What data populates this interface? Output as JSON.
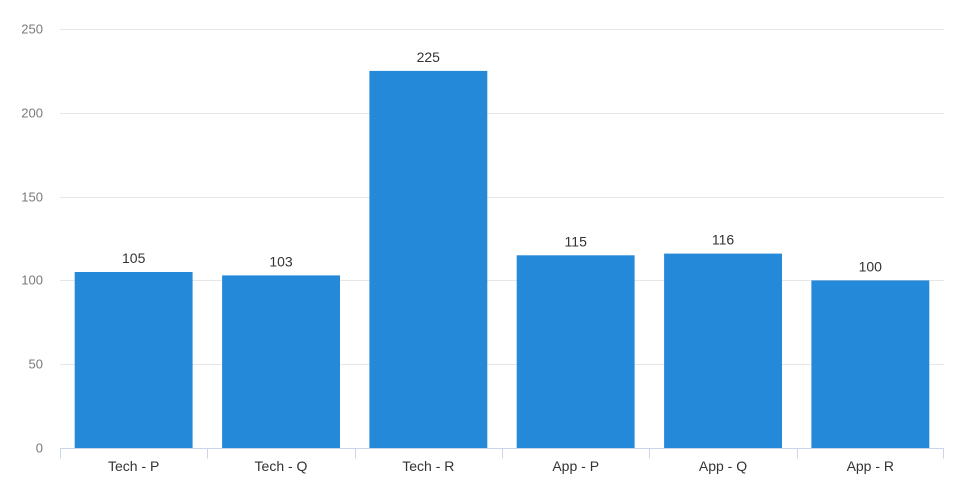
{
  "chart_data": {
    "type": "bar",
    "title": "",
    "xlabel": "",
    "ylabel": "",
    "categories": [
      "Tech - P",
      "Tech - Q",
      "Tech - R",
      "App - P",
      "App - Q",
      "App - R"
    ],
    "values": [
      105,
      103,
      225,
      115,
      116,
      100
    ],
    "ylim": [
      0,
      250
    ],
    "yticks": [
      0,
      50,
      100,
      150,
      200,
      250
    ],
    "grid": true,
    "legend": "none",
    "data_labels": true,
    "colors": {
      "bar": "#2389d8",
      "grid": "#e6e6e6",
      "axis": "#ccd6eb"
    }
  }
}
